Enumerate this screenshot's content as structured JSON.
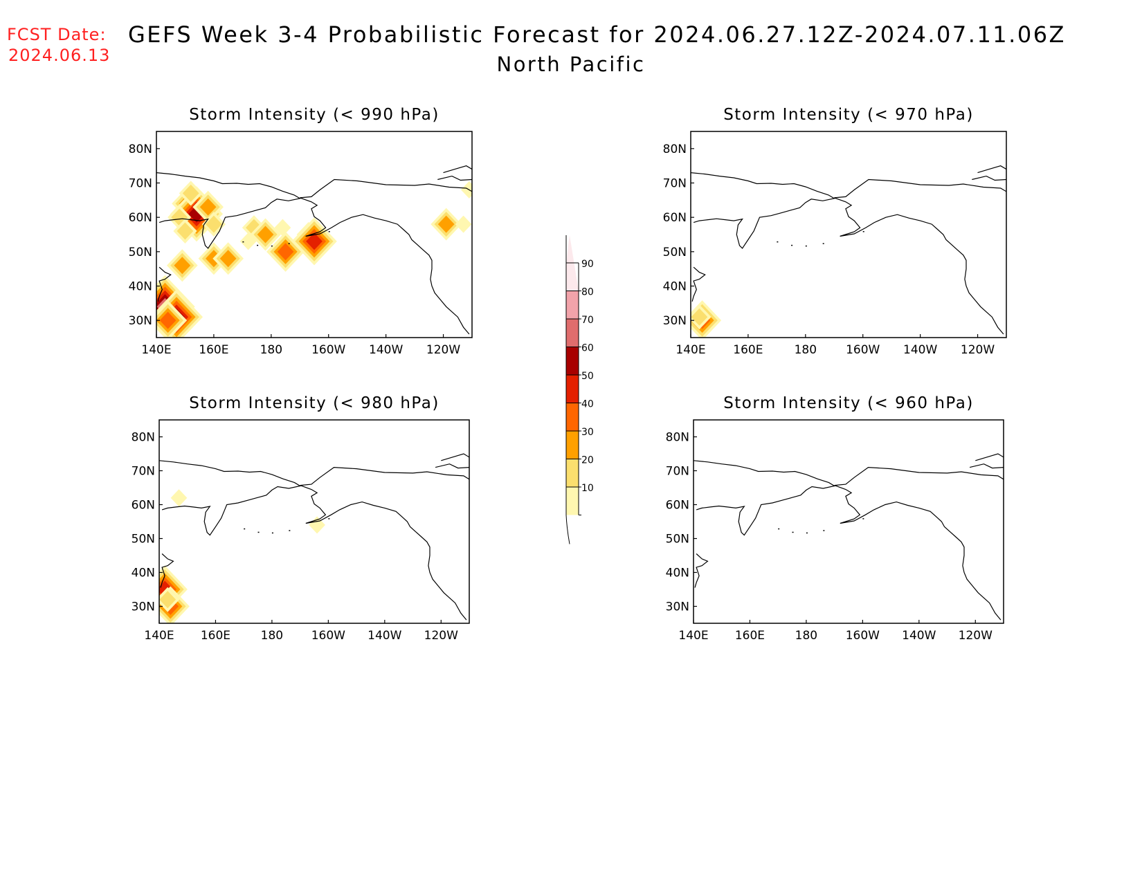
{
  "header": {
    "fcst_label": "FCST Date:",
    "fcst_date": "2024.06.13",
    "title": "GEFS Week 3-4 Probabilistic Forecast for 2024.06.27.12Z-2024.07.11.06Z",
    "subtitle": "North Pacific"
  },
  "map": {
    "lon_ticks": [
      "140E",
      "160E",
      "180",
      "160W",
      "140W",
      "120W"
    ],
    "lat_ticks": [
      "80N",
      "70N",
      "60N",
      "50N",
      "40N",
      "30N"
    ],
    "lon_range": [
      140,
      250
    ],
    "lat_range": [
      25,
      85
    ]
  },
  "panels": [
    {
      "title": "Storm Intensity (< 990 hPa)",
      "blobs": [
        {
          "lon": 152,
          "lat": 64,
          "p": 45
        },
        {
          "lon": 154,
          "lat": 61,
          "p": 60
        },
        {
          "lon": 152,
          "lat": 67,
          "p": 25
        },
        {
          "lon": 158,
          "lat": 63,
          "p": 30
        },
        {
          "lon": 160,
          "lat": 58,
          "p": 20
        },
        {
          "lon": 148,
          "lat": 60,
          "p": 20
        },
        {
          "lon": 150,
          "lat": 56,
          "p": 20
        },
        {
          "lon": 174,
          "lat": 57,
          "p": 20
        },
        {
          "lon": 178,
          "lat": 55,
          "p": 35
        },
        {
          "lon": 172,
          "lat": 53,
          "p": 15
        },
        {
          "lon": 184,
          "lat": 57,
          "p": 15
        },
        {
          "lon": 193,
          "lat": 55,
          "p": 25
        },
        {
          "lon": 195,
          "lat": 53,
          "p": 50
        },
        {
          "lon": 185,
          "lat": 50,
          "p": 40
        },
        {
          "lon": 149,
          "lat": 46,
          "p": 35
        },
        {
          "lon": 160,
          "lat": 48,
          "p": 30
        },
        {
          "lon": 165,
          "lat": 48,
          "p": 30
        },
        {
          "lon": 143,
          "lat": 34,
          "p": 70
        },
        {
          "lon": 147,
          "lat": 31,
          "p": 60
        },
        {
          "lon": 144,
          "lat": 30,
          "p": 45
        },
        {
          "lon": 249,
          "lat": 68,
          "p": 15
        },
        {
          "lon": 241,
          "lat": 58,
          "p": 35
        },
        {
          "lon": 247,
          "lat": 58,
          "p": 15
        }
      ]
    },
    {
      "title": "Storm Intensity (< 970 hPa)",
      "blobs": [
        {
          "lon": 144,
          "lat": 30,
          "p": 45
        },
        {
          "lon": 143,
          "lat": 31,
          "p": 25
        }
      ]
    },
    {
      "title": "Storm Intensity (< 980 hPa)",
      "blobs": [
        {
          "lon": 147,
          "lat": 62,
          "p": 15
        },
        {
          "lon": 196,
          "lat": 54,
          "p": 15
        },
        {
          "lon": 142,
          "lat": 35,
          "p": 55
        },
        {
          "lon": 144,
          "lat": 30,
          "p": 40
        },
        {
          "lon": 143,
          "lat": 32,
          "p": 25
        }
      ]
    },
    {
      "title": "Storm Intensity (< 960 hPa)",
      "blobs": []
    }
  ],
  "colorbar": {
    "labels": [
      "90",
      "80",
      "70",
      "60",
      "50",
      "40",
      "30",
      "20",
      "10"
    ],
    "colors": [
      "#fce9ec",
      "#f2a3aa",
      "#e06d6d",
      "#a80000",
      "#e42000",
      "#ff6600",
      "#ffa000",
      "#fbdf6e",
      "#fff7b0"
    ]
  }
}
